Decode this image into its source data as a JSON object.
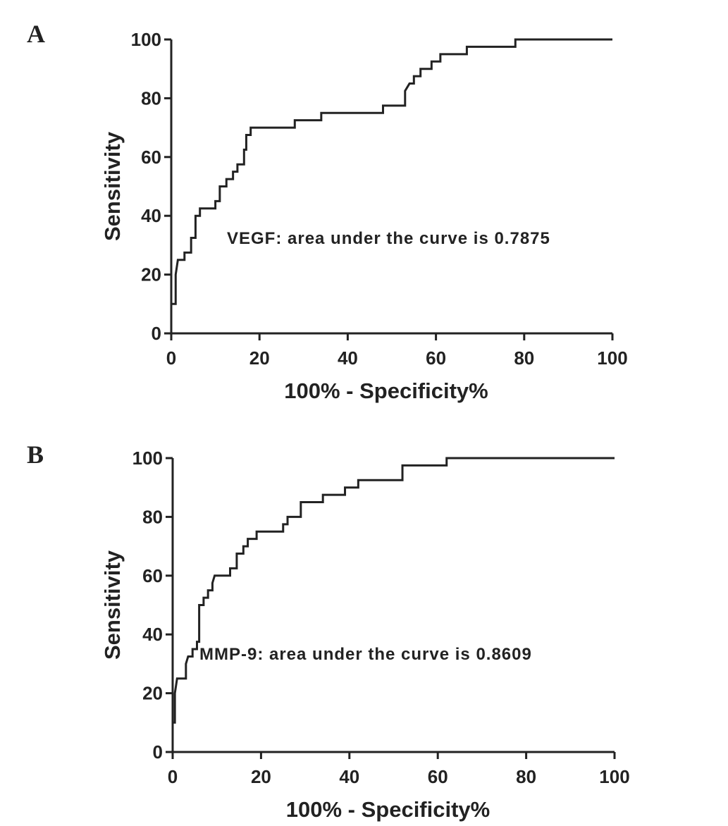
{
  "chart_data": [
    {
      "type": "line",
      "label": "A",
      "annotation": "VEGF: area under the curve is 0.7875",
      "xlabel": "100% - Specificity%",
      "ylabel": "Sensitivity",
      "xlim": [
        0,
        100
      ],
      "ylim": [
        0,
        100
      ],
      "xticks": [
        0,
        20,
        40,
        60,
        80,
        100
      ],
      "yticks": [
        0,
        20,
        40,
        60,
        80,
        100
      ],
      "x": [
        0,
        0,
        1,
        1,
        1.5,
        3,
        3,
        4.5,
        4.5,
        5.5,
        5.5,
        6.5,
        6.5,
        10,
        10,
        11,
        11,
        12.5,
        12.5,
        14,
        14,
        15,
        15,
        16.5,
        16.5,
        17,
        17,
        18,
        18,
        28,
        28,
        34,
        34,
        48,
        48,
        53,
        53,
        54,
        55,
        55,
        56.5,
        56.5,
        59,
        59,
        61,
        61,
        67,
        67,
        78,
        78,
        100
      ],
      "series": [
        {
          "color": "#222222",
          "values": [
            0,
            10,
            10,
            20,
            25,
            25,
            27.5,
            27.5,
            32.5,
            32.5,
            40,
            40,
            42.5,
            42.5,
            45,
            45,
            50,
            50,
            52.5,
            52.5,
            55,
            55,
            57.5,
            57.5,
            62.5,
            62.5,
            67.5,
            67.5,
            70,
            70,
            72.5,
            72.5,
            75,
            75,
            77.5,
            77.5,
            82.5,
            85,
            85,
            87.5,
            87.5,
            90,
            90,
            92.5,
            92.5,
            95,
            95,
            97.5,
            97.5,
            100,
            100
          ]
        }
      ]
    },
    {
      "type": "line",
      "label": "B",
      "annotation": "MMP-9: area under the curve is 0.8609",
      "xlabel": "100% - Specificity%",
      "ylabel": "Sensitivity",
      "xlim": [
        0,
        100
      ],
      "ylim": [
        0,
        100
      ],
      "xticks": [
        0,
        20,
        40,
        60,
        80,
        100
      ],
      "yticks": [
        0,
        20,
        40,
        60,
        80,
        100
      ],
      "x": [
        0,
        0,
        0.5,
        0.5,
        1,
        3,
        3,
        3.5,
        4.5,
        4.5,
        5.5,
        5.5,
        6,
        6,
        7,
        7,
        8,
        8,
        9,
        9,
        9.5,
        13,
        13,
        14.5,
        14.5,
        16,
        16,
        17,
        17,
        19,
        19,
        25,
        25,
        26,
        26,
        29,
        29,
        34,
        34,
        39,
        39,
        42,
        42,
        52,
        52,
        62,
        62,
        100
      ],
      "series": [
        {
          "color": "#222222",
          "values": [
            0,
            10,
            10,
            20,
            25,
            25,
            30,
            32.5,
            32.5,
            35,
            35,
            37.5,
            37.5,
            50,
            50,
            52.5,
            52.5,
            55,
            55,
            57.5,
            60,
            60,
            62.5,
            62.5,
            67.5,
            67.5,
            70,
            70,
            72.5,
            72.5,
            75,
            75,
            77.5,
            77.5,
            80,
            80,
            85,
            85,
            87.5,
            87.5,
            90,
            90,
            92.5,
            92.5,
            97.5,
            97.5,
            100,
            100
          ]
        }
      ]
    }
  ]
}
